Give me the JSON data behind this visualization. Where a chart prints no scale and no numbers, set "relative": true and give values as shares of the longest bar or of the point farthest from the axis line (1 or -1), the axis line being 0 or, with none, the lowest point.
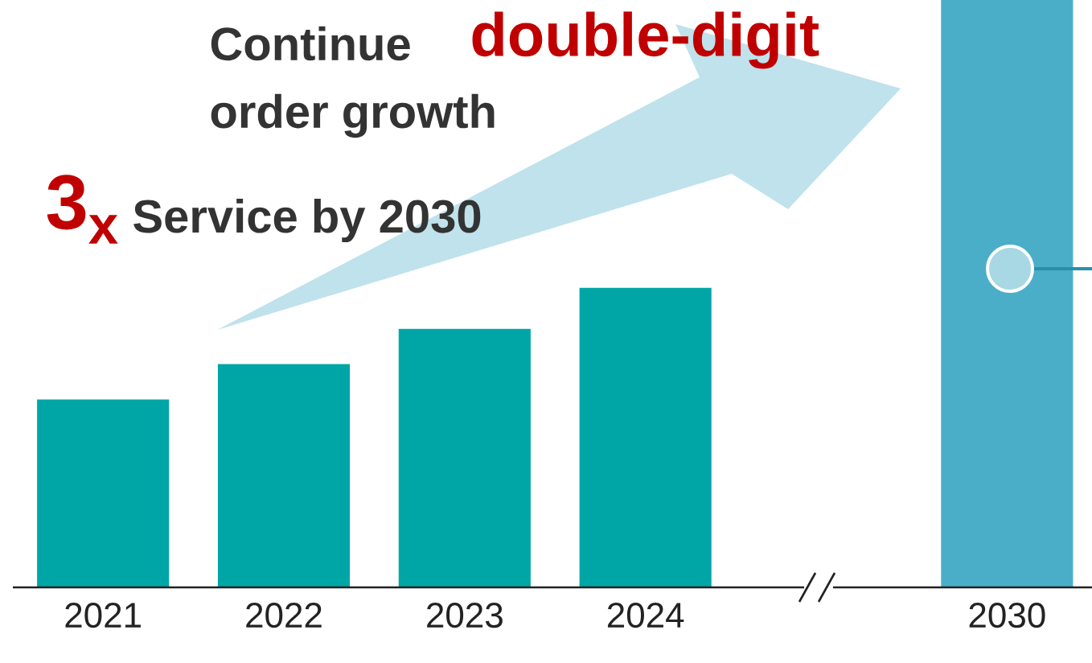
{
  "chart_data": {
    "type": "bar",
    "relative": true,
    "categories": [
      "2021",
      "2022",
      "2023",
      "2024",
      null,
      "2030"
    ],
    "values": [
      0.32,
      0.38,
      0.44,
      0.51,
      null,
      1
    ],
    "colors": [
      "#00a6a6",
      "#00a6a6",
      "#00a6a6",
      "#00a6a6",
      "#00a6a6",
      "#4aaec8"
    ],
    "annotations": [
      "Continue",
      "double-digit",
      "order growth",
      "3$_{x}$",
      "Service by 2030"
    ]
  }
}
